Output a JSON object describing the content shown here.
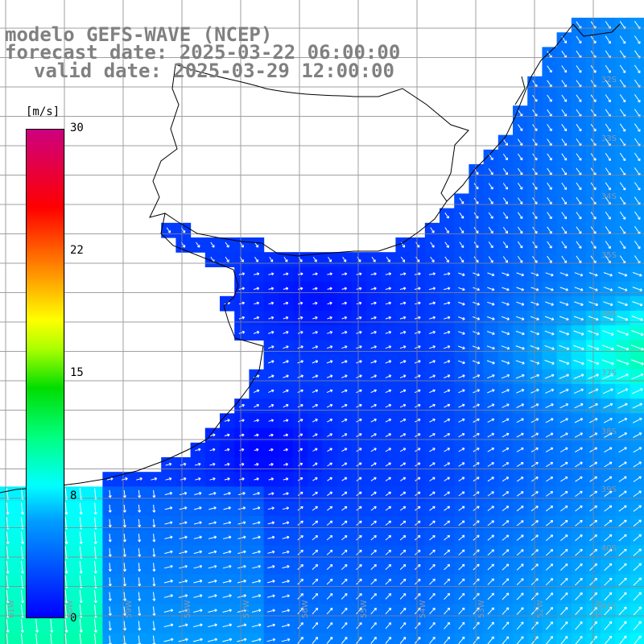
{
  "title": {
    "model": "modelo GEFS-WAVE (NCEP)",
    "forecast": "forecast date: 2025-03-22 06:00:00",
    "valid": "valid date: 2025-03-29 12:00:00"
  },
  "legend": {
    "unit": "[m/s]",
    "ticks": [
      "30",
      "22",
      "15",
      "8",
      "0"
    ],
    "tick_values": [
      30,
      22,
      15,
      8,
      0
    ],
    "min": 0,
    "max": 30,
    "colors": [
      "#0000ff",
      "#00a0ff",
      "#00ffff",
      "#00ff80",
      "#00dd00",
      "#aaff00",
      "#ffff00",
      "#ff9900",
      "#ff0000",
      "#cc0080"
    ]
  },
  "grid": {
    "lat_labels": [
      "32S",
      "33S",
      "34S",
      "35S",
      "36S",
      "37S",
      "38S",
      "39S",
      "40S",
      "41S"
    ],
    "lon_labels": [
      "61W",
      "60W",
      "59W",
      "58W",
      "57W",
      "56W",
      "55W",
      "54W",
      "53W",
      "52W",
      "51W"
    ],
    "line_color": "#888888"
  },
  "map": {
    "land_color": "#ffffff",
    "coast_color": "#000000",
    "arrow_color": "#ffffff"
  }
}
